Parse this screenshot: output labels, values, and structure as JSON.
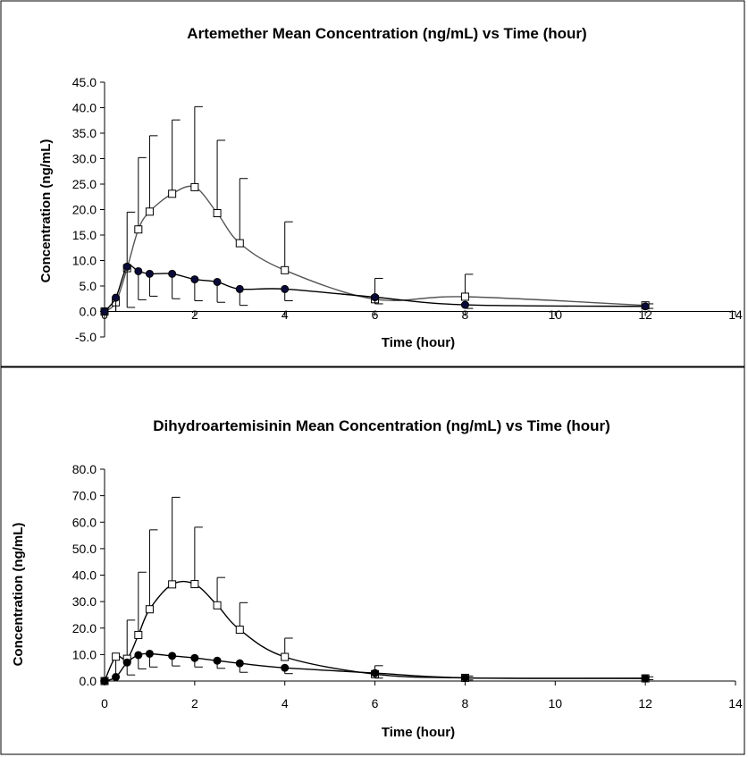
{
  "chart_data": [
    {
      "type": "line",
      "title": "Artemether Mean Concentration (ng/mL) vs Time (hour)",
      "xlabel": "Time (hour)",
      "ylabel": "Concentration (ng/mL)",
      "xlim": [
        0,
        14
      ],
      "ylim": [
        -5,
        45
      ],
      "x_ticks": [
        "0",
        "2",
        "4",
        "6",
        "8",
        "10",
        "12",
        "14"
      ],
      "y_ticks": [
        "-5.0",
        "0.0",
        "5.0",
        "10.0",
        "15.0",
        "20.0",
        "25.0",
        "30.0",
        "35.0",
        "40.0",
        "45.0"
      ],
      "x_tick_values": [
        0,
        2,
        4,
        6,
        8,
        10,
        12,
        14
      ],
      "y_tick_values": [
        -5,
        0,
        5,
        10,
        15,
        20,
        25,
        30,
        35,
        40,
        45
      ],
      "grid": false,
      "legend": "none",
      "series": [
        {
          "marker": "open-square",
          "color": "#555555",
          "x": [
            0,
            0.25,
            0.5,
            0.75,
            1,
            1.5,
            2,
            2.5,
            3,
            4,
            6,
            8,
            12
          ],
          "y": [
            0,
            1.8,
            8.5,
            16.1,
            19.6,
            23.1,
            24.4,
            19.3,
            13.4,
            8.1,
            2.4,
            2.9,
            1.2
          ],
          "error_upper": [
            0,
            0,
            19.5,
            30.2,
            34.5,
            37.6,
            40.2,
            33.6,
            26.1,
            17.6,
            6.5,
            7.3,
            1.5
          ]
        },
        {
          "marker": "filled-circle",
          "color": "#000000",
          "x": [
            0,
            0.25,
            0.5,
            0.75,
            1,
            1.5,
            2,
            2.5,
            3,
            4,
            6,
            8,
            12
          ],
          "y": [
            0,
            2.7,
            8.8,
            7.9,
            7.4,
            7.4,
            6.3,
            5.8,
            4.4,
            4.4,
            2.8,
            1.3,
            1.0
          ],
          "error_lower": [
            0,
            0,
            0.8,
            2.3,
            3.0,
            2.5,
            2.1,
            1.8,
            1.2,
            2.1,
            1.5,
            0.6,
            0.6
          ]
        }
      ]
    },
    {
      "type": "line",
      "title": "Dihydroartemisinin Mean Concentration (ng/mL) vs Time (hour)",
      "xlabel": "Time (hour)",
      "ylabel": "Concentration (ng/mL)",
      "xlim": [
        0,
        14
      ],
      "ylim": [
        0,
        80
      ],
      "x_ticks": [
        "0",
        "2",
        "4",
        "6",
        "8",
        "10",
        "12",
        "14"
      ],
      "y_ticks": [
        "0.0",
        "10.0",
        "20.0",
        "30.0",
        "40.0",
        "50.0",
        "60.0",
        "70.0",
        "80.0"
      ],
      "x_tick_values": [
        0,
        2,
        4,
        6,
        8,
        10,
        12,
        14
      ],
      "y_tick_values": [
        0,
        10,
        20,
        30,
        40,
        50,
        60,
        70,
        80
      ],
      "grid": false,
      "legend": "none",
      "series": [
        {
          "marker": "open-square",
          "color": "#000000",
          "x": [
            0,
            0.25,
            0.5,
            0.75,
            1,
            1.5,
            2,
            2.5,
            3,
            4,
            6,
            8,
            12
          ],
          "y": [
            0,
            9.2,
            8.4,
            17.4,
            27.1,
            36.5,
            36.6,
            28.6,
            19.4,
            9.1,
            2.6,
            1.2,
            1.0
          ],
          "error_upper": [
            0,
            0,
            23.0,
            41.1,
            57.1,
            69.4,
            58.1,
            39.1,
            29.6,
            16.2,
            5.8,
            1.9,
            1.6
          ]
        },
        {
          "marker": "filled-circle",
          "color": "#000000",
          "x": [
            0,
            0.25,
            0.5,
            0.75,
            1,
            1.5,
            2,
            2.5,
            3,
            4,
            6,
            8,
            12
          ],
          "y": [
            0,
            1.5,
            7.0,
            9.8,
            10.3,
            9.5,
            8.7,
            7.7,
            6.7,
            5.0,
            3.0,
            1.2,
            1.0
          ],
          "error_lower": [
            0,
            0,
            2.3,
            4.6,
            5.3,
            5.7,
            5.3,
            4.8,
            3.3,
            2.8,
            1.1,
            0.4,
            0.5
          ]
        }
      ]
    }
  ]
}
